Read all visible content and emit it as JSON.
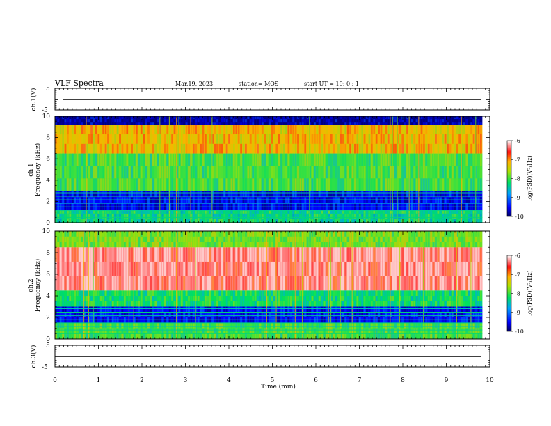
{
  "header": {
    "title": "VLF Spectra",
    "date": "Mar.19, 2023",
    "station": "station= MOS",
    "start": "start UT =  19: 0  : 1"
  },
  "chart_data": [
    {
      "type": "line",
      "panel": "ch1-waveform",
      "ylabel": "ch.1(V)",
      "ylim": [
        -5,
        5
      ],
      "yticks": [
        "5",
        "-5"
      ],
      "level": 0
    },
    {
      "type": "heatmap",
      "panel": "ch1-spectrogram",
      "ylabel": "ch.1\nFrequency (kHz)",
      "ylabel_lines": [
        "ch.1",
        "Frequency (kHz)"
      ],
      "ylim": [
        0,
        10
      ],
      "yticks": [
        "0",
        "2",
        "4",
        "6",
        "8",
        "10"
      ],
      "colorbar": {
        "ticks": [
          "-6",
          "-7",
          "-8",
          "-9",
          "-10"
        ],
        "range": [
          -10,
          -6
        ],
        "label": "log(PSD)(V²/Hz)"
      },
      "bands": [
        {
          "from_khz": 0.0,
          "to_khz": 1.2,
          "log_psd": -8.3
        },
        {
          "from_khz": 1.2,
          "to_khz": 3.0,
          "log_psd": -9.5
        },
        {
          "from_khz": 3.0,
          "to_khz": 6.5,
          "log_psd": -8.0
        },
        {
          "from_khz": 6.5,
          "to_khz": 9.2,
          "log_psd": -7.2
        },
        {
          "from_khz": 9.2,
          "to_khz": 10.0,
          "log_psd": -9.8
        }
      ]
    },
    {
      "type": "heatmap",
      "panel": "ch2-spectrogram",
      "ylabel": "ch.2\nFrequency (kHz)",
      "ylabel_lines": [
        "ch.2",
        "Frequency (kHz)"
      ],
      "ylim": [
        0,
        10
      ],
      "yticks": [
        "0",
        "2",
        "4",
        "6",
        "8",
        "10"
      ],
      "colorbar": {
        "ticks": [
          "-6",
          "-7",
          "-8",
          "-9",
          "-10"
        ],
        "range": [
          -10,
          -6
        ],
        "label": "log(PSD)(V²/Hz)"
      },
      "bands": [
        {
          "from_khz": 0.0,
          "to_khz": 1.5,
          "log_psd": -8.0
        },
        {
          "from_khz": 1.5,
          "to_khz": 3.0,
          "log_psd": -9.5
        },
        {
          "from_khz": 3.0,
          "to_khz": 4.5,
          "log_psd": -8.2
        },
        {
          "from_khz": 4.5,
          "to_khz": 8.5,
          "log_psd": -6.3
        },
        {
          "from_khz": 8.5,
          "to_khz": 10.0,
          "log_psd": -7.8
        }
      ]
    },
    {
      "type": "line",
      "panel": "ch3-waveform",
      "ylabel": "ch.3(V)",
      "ylim": [
        -5,
        5
      ],
      "yticks": [
        "5",
        "-5"
      ],
      "level": 0
    }
  ],
  "xaxis": {
    "label": "Time (min)",
    "xlim": [
      0,
      10
    ],
    "ticks": [
      "0",
      "1",
      "2",
      "3",
      "4",
      "5",
      "6",
      "7",
      "8",
      "9",
      "10"
    ],
    "data_end": 9.83
  }
}
